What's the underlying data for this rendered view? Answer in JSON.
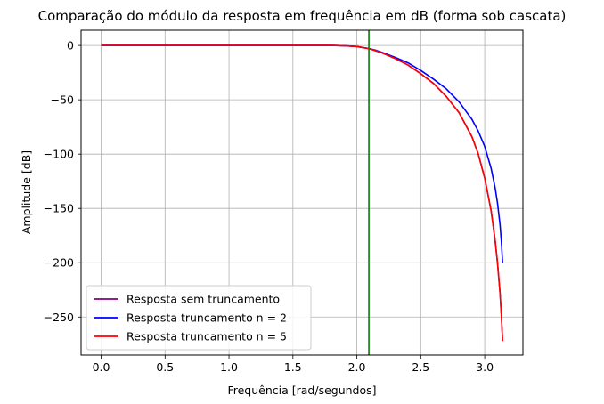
{
  "chart_data": {
    "type": "line",
    "title": "Comparação do módulo da resposta em frequência em dB (forma sob cascata)",
    "xlabel": "Frequência [rad/segundos]",
    "ylabel": "Amplitude [dB]",
    "xlim": [
      -0.157,
      3.299
    ],
    "ylim": [
      -285,
      14
    ],
    "xticks": [
      0.0,
      0.5,
      1.0,
      1.5,
      2.0,
      2.5,
      3.0
    ],
    "xtick_labels": [
      "0.0",
      "0.5",
      "1.0",
      "1.5",
      "2.0",
      "2.5",
      "3.0"
    ],
    "yticks": [
      0,
      -50,
      -100,
      -150,
      -200,
      -250
    ],
    "ytick_labels": [
      "0",
      "−50",
      "−100",
      "−150",
      "−200",
      "−250"
    ],
    "grid": true,
    "legend_position": "lower-left",
    "vline": {
      "x": 2.094,
      "color": "#008000"
    },
    "series": [
      {
        "name": "Resposta sem truncamento",
        "color": "#800080",
        "x": [
          0,
          0.3,
          0.6,
          0.9,
          1.2,
          1.5,
          1.8,
          1.9,
          2.0,
          2.05,
          2.1,
          2.15,
          2.2,
          2.3,
          2.4,
          2.5,
          2.6,
          2.7,
          2.8,
          2.9,
          2.95,
          3.0,
          3.05,
          3.08,
          3.1,
          3.12,
          3.13,
          3.135,
          3.14
        ],
        "y": [
          0,
          0,
          0,
          0,
          0,
          0,
          0,
          -0.3,
          -1,
          -2,
          -3,
          -5,
          -7,
          -12,
          -18,
          -26,
          -35,
          -47,
          -62,
          -84,
          -100,
          -122,
          -152,
          -178,
          -200,
          -228,
          -248,
          -260,
          -272
        ]
      },
      {
        "name": "Resposta truncamento n = 2",
        "color": "#0000ff",
        "x": [
          0,
          0.3,
          0.6,
          0.9,
          1.2,
          1.5,
          1.8,
          1.9,
          2.0,
          2.05,
          2.1,
          2.15,
          2.2,
          2.3,
          2.4,
          2.5,
          2.6,
          2.7,
          2.8,
          2.9,
          2.95,
          3.0,
          3.05,
          3.08,
          3.1,
          3.12,
          3.13,
          3.135,
          3.14
        ],
        "y": [
          0,
          0,
          0,
          0,
          0,
          0,
          0,
          -0.3,
          -1,
          -2,
          -3,
          -4.5,
          -6.5,
          -11,
          -16,
          -23,
          -31,
          -40,
          -52,
          -68,
          -79,
          -93,
          -113,
          -130,
          -145,
          -165,
          -180,
          -190,
          -200
        ]
      },
      {
        "name": "Resposta truncamento n = 5",
        "color": "#ff0000",
        "x": [
          0,
          0.3,
          0.6,
          0.9,
          1.2,
          1.5,
          1.8,
          1.9,
          2.0,
          2.05,
          2.1,
          2.15,
          2.2,
          2.3,
          2.4,
          2.5,
          2.6,
          2.7,
          2.8,
          2.9,
          2.95,
          3.0,
          3.05,
          3.08,
          3.1,
          3.12,
          3.13,
          3.135,
          3.14
        ],
        "y": [
          0,
          0,
          0,
          0,
          0,
          0,
          0,
          -0.3,
          -1,
          -2,
          -3,
          -5,
          -7,
          -12,
          -18,
          -26,
          -35,
          -47,
          -62,
          -84,
          -100,
          -122,
          -152,
          -178,
          -200,
          -228,
          -248,
          -260,
          -272
        ]
      }
    ]
  }
}
